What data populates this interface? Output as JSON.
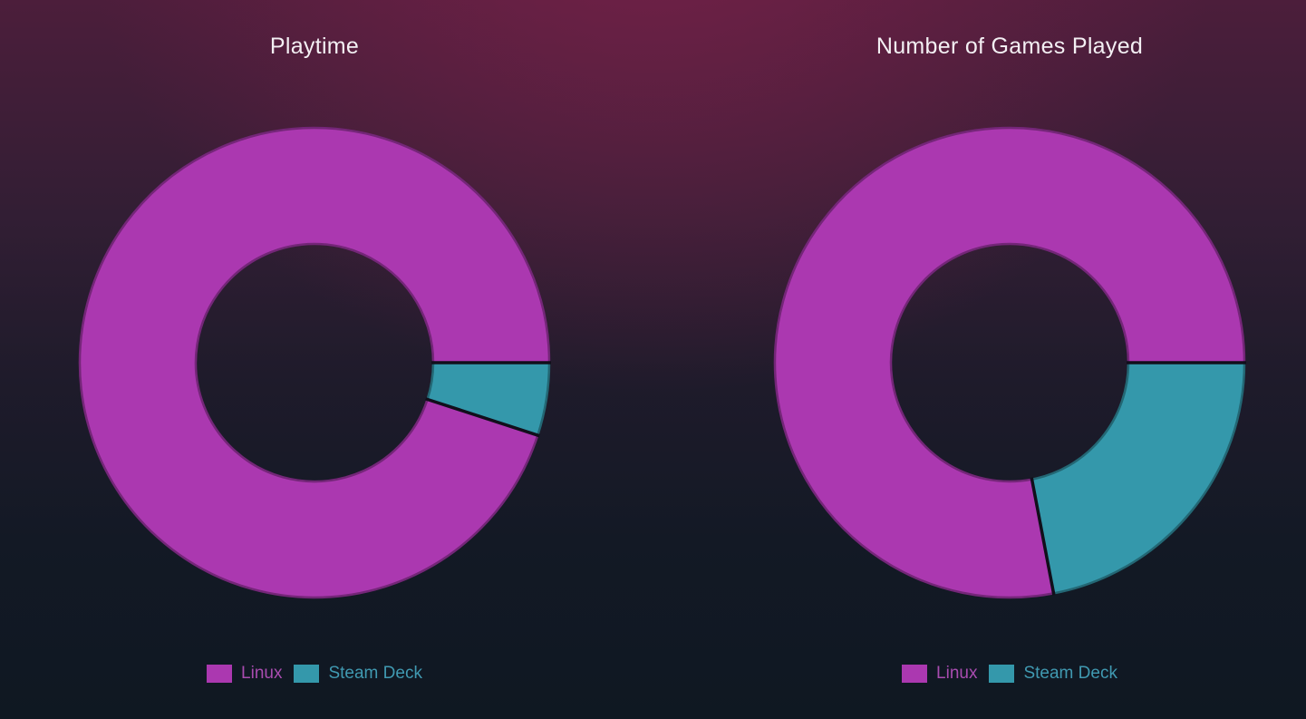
{
  "page": {
    "background_top_color": "#722146",
    "background_bottom_color": "#101823",
    "title_color": "#f3eff3"
  },
  "chart_data": [
    {
      "type": "pie",
      "donut": true,
      "title": "Playtime",
      "labels": [
        "Linux",
        "Steam Deck"
      ],
      "values": [
        95,
        5
      ],
      "unit": "%",
      "colors": [
        "#ab38b0",
        "#3498ab"
      ],
      "legend_position": "bottom",
      "legend_label_colors": [
        "#a94cb0",
        "#4099b1"
      ],
      "start_angle_deg": 0,
      "direction": "counterclockwise"
    },
    {
      "type": "pie",
      "donut": true,
      "title": "Number of Games Played",
      "labels": [
        "Linux",
        "Steam Deck"
      ],
      "values": [
        78,
        22
      ],
      "unit": "%",
      "colors": [
        "#ab38b0",
        "#3498ab"
      ],
      "legend_position": "bottom",
      "legend_label_colors": [
        "#a94cb0",
        "#4099b1"
      ],
      "start_angle_deg": 0,
      "direction": "counterclockwise"
    }
  ]
}
